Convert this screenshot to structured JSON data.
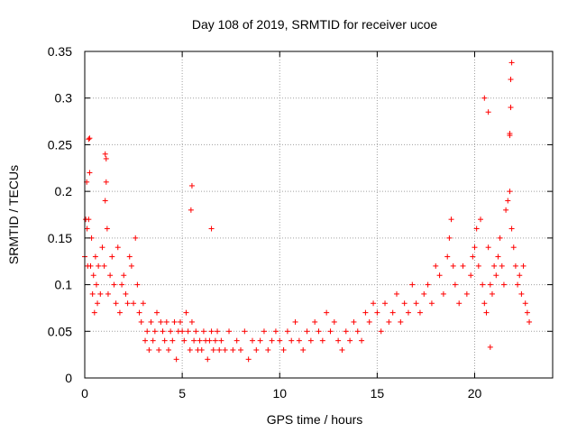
{
  "chart_data": {
    "type": "scatter",
    "title": "Day 108 of 2019, SRMTID for receiver ucoe",
    "xlabel": "GPS time / hours",
    "ylabel": "SRMTID / TECUs",
    "xlim": [
      0,
      24
    ],
    "ylim": [
      0,
      0.35
    ],
    "xticks": [
      0,
      5,
      10,
      15,
      20
    ],
    "xtick_labels": [
      "0",
      "5",
      "10",
      "15",
      "20"
    ],
    "yticks": [
      0,
      0.05,
      0.1,
      0.15,
      0.2,
      0.25,
      0.3,
      0.35
    ],
    "ytick_labels": [
      "0",
      "0.05",
      "0.1",
      "0.15",
      "0.2",
      "0.25",
      "0.3",
      "0.35"
    ],
    "grid": true,
    "marker": "+",
    "color": "#ff0000",
    "series": [
      {
        "name": "SRMTID",
        "x": [
          0.0,
          0.05,
          0.1,
          0.12,
          0.15,
          0.2,
          0.25,
          0.3,
          0.35,
          0.4,
          0.45,
          0.5,
          0.55,
          0.6,
          0.65,
          0.7,
          0.8,
          0.9,
          1.0,
          1.05,
          1.1,
          1.15,
          1.2,
          1.3,
          1.4,
          1.5,
          1.6,
          1.7,
          1.8,
          1.9,
          2.0,
          2.1,
          2.2,
          2.3,
          2.4,
          2.5,
          2.6,
          2.7,
          2.8,
          2.9,
          3.0,
          3.1,
          3.2,
          3.3,
          3.4,
          3.5,
          3.6,
          3.7,
          3.8,
          3.9,
          4.0,
          4.1,
          4.2,
          4.3,
          4.4,
          4.5,
          4.6,
          4.7,
          4.8,
          4.9,
          5.0,
          5.1,
          5.2,
          5.3,
          5.4,
          5.5,
          5.6,
          5.7,
          5.8,
          5.9,
          6.0,
          6.1,
          6.2,
          6.3,
          6.4,
          6.5,
          6.6,
          6.7,
          6.8,
          6.9,
          7.0,
          7.2,
          7.4,
          7.6,
          7.8,
          8.0,
          8.2,
          8.4,
          8.6,
          8.8,
          9.0,
          9.2,
          9.4,
          9.6,
          9.8,
          10.0,
          10.2,
          10.4,
          10.6,
          10.8,
          11.0,
          11.2,
          11.4,
          11.6,
          11.8,
          12.0,
          12.2,
          12.4,
          12.6,
          12.8,
          13.0,
          13.2,
          13.4,
          13.6,
          13.8,
          14.0,
          14.2,
          14.4,
          14.6,
          14.8,
          15.0,
          15.2,
          15.4,
          15.6,
          15.8,
          16.0,
          16.2,
          16.4,
          16.6,
          16.8,
          17.0,
          17.2,
          17.4,
          17.6,
          17.8,
          18.0,
          18.2,
          18.4,
          18.6,
          18.7,
          18.8,
          18.9,
          19.0,
          19.2,
          19.4,
          19.6,
          19.8,
          19.9,
          20.0,
          20.1,
          20.2,
          20.3,
          20.4,
          20.5,
          20.6,
          20.7,
          20.8,
          20.9,
          21.0,
          21.1,
          21.2,
          21.3,
          21.4,
          21.5,
          21.6,
          21.7,
          21.8,
          21.9,
          22.0,
          22.1,
          22.2,
          22.3,
          22.4,
          22.5,
          22.6,
          22.7,
          22.8,
          0.2,
          0.25,
          1.05,
          1.1,
          5.5,
          5.45,
          6.5,
          20.5,
          20.7,
          21.8,
          21.85,
          21.9,
          21.85,
          21.8,
          20.8
        ],
        "y": [
          0.13,
          0.17,
          0.21,
          0.16,
          0.12,
          0.17,
          0.22,
          0.12,
          0.15,
          0.09,
          0.11,
          0.07,
          0.13,
          0.1,
          0.08,
          0.12,
          0.09,
          0.14,
          0.12,
          0.19,
          0.21,
          0.16,
          0.09,
          0.11,
          0.13,
          0.1,
          0.08,
          0.14,
          0.07,
          0.1,
          0.11,
          0.09,
          0.08,
          0.13,
          0.12,
          0.08,
          0.15,
          0.1,
          0.07,
          0.06,
          0.08,
          0.04,
          0.05,
          0.03,
          0.06,
          0.04,
          0.05,
          0.07,
          0.03,
          0.06,
          0.05,
          0.04,
          0.06,
          0.03,
          0.05,
          0.04,
          0.06,
          0.02,
          0.05,
          0.06,
          0.05,
          0.04,
          0.07,
          0.05,
          0.03,
          0.06,
          0.04,
          0.05,
          0.03,
          0.04,
          0.03,
          0.05,
          0.04,
          0.02,
          0.04,
          0.05,
          0.03,
          0.04,
          0.05,
          0.03,
          0.04,
          0.03,
          0.05,
          0.03,
          0.04,
          0.03,
          0.05,
          0.02,
          0.04,
          0.03,
          0.04,
          0.05,
          0.03,
          0.04,
          0.05,
          0.04,
          0.03,
          0.05,
          0.04,
          0.06,
          0.04,
          0.03,
          0.05,
          0.04,
          0.06,
          0.05,
          0.04,
          0.07,
          0.05,
          0.06,
          0.04,
          0.03,
          0.05,
          0.04,
          0.06,
          0.05,
          0.04,
          0.07,
          0.06,
          0.08,
          0.07,
          0.05,
          0.08,
          0.06,
          0.07,
          0.09,
          0.06,
          0.08,
          0.07,
          0.1,
          0.08,
          0.07,
          0.09,
          0.1,
          0.08,
          0.12,
          0.11,
          0.09,
          0.13,
          0.15,
          0.17,
          0.12,
          0.1,
          0.08,
          0.12,
          0.09,
          0.11,
          0.13,
          0.14,
          0.16,
          0.12,
          0.17,
          0.1,
          0.08,
          0.07,
          0.14,
          0.1,
          0.09,
          0.12,
          0.11,
          0.13,
          0.15,
          0.12,
          0.1,
          0.18,
          0.19,
          0.2,
          0.16,
          0.14,
          0.12,
          0.1,
          0.11,
          0.09,
          0.12,
          0.08,
          0.07,
          0.06,
          0.256,
          0.257,
          0.24,
          0.235,
          0.206,
          0.18,
          0.16,
          0.3,
          0.285,
          0.26,
          0.32,
          0.338,
          0.29,
          0.262,
          0.033
        ]
      }
    ]
  }
}
